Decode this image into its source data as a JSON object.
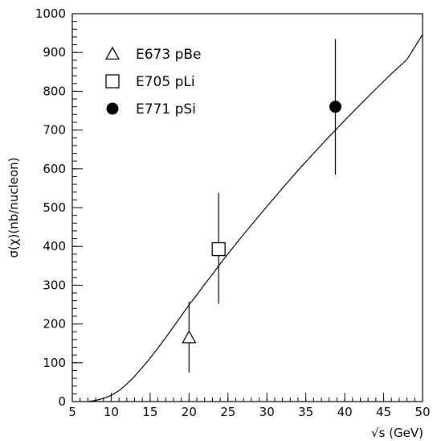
{
  "chart_data": {
    "type": "scatter",
    "xlabel": "√s (GeV)",
    "ylabel": "σ(χ)(nb/nucleon)",
    "xlim": [
      5,
      50
    ],
    "ylim": [
      0,
      1000
    ],
    "x_ticks": [
      5,
      10,
      15,
      20,
      25,
      30,
      35,
      40,
      45,
      50
    ],
    "y_ticks": [
      0,
      100,
      200,
      300,
      400,
      500,
      600,
      700,
      800,
      900,
      1000
    ],
    "x_minor_step": 1,
    "y_minor_step": 20,
    "grid": false,
    "legend_position": "top-left",
    "series": [
      {
        "name": "E673 pBe",
        "marker": "open-triangle",
        "x": 20.0,
        "y": 165,
        "yerr_low": 75,
        "yerr_high": 258
      },
      {
        "name": "E705 pLi",
        "marker": "open-square",
        "x": 23.8,
        "y": 393,
        "yerr_low": 252,
        "yerr_high": 538
      },
      {
        "name": "E771 pSi",
        "marker": "filled-circle",
        "x": 38.8,
        "y": 760,
        "yerr_low": 585,
        "yerr_high": 935
      }
    ],
    "curve": {
      "x": [
        7.0,
        8,
        9,
        10,
        11,
        12,
        13,
        14,
        15,
        16,
        17,
        18,
        19,
        20,
        21,
        22,
        23,
        24,
        25,
        26,
        27,
        28,
        29,
        30,
        32,
        34,
        36,
        38,
        40,
        42,
        44,
        46,
        48,
        50
      ],
      "y": [
        0,
        3,
        8,
        16,
        28,
        45,
        65,
        88,
        112,
        138,
        165,
        193,
        221,
        249,
        275,
        302,
        328,
        355,
        381,
        406,
        431,
        455,
        479,
        503,
        550,
        596,
        640,
        683,
        725,
        766,
        806,
        845,
        882,
        946
      ]
    }
  }
}
